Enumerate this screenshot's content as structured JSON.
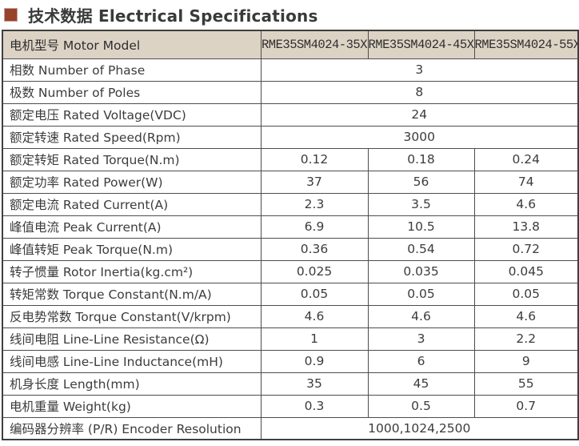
{
  "title": {
    "text": "技术数据 Electrical Specifications"
  },
  "colors": {
    "page_bg": "#ffffff",
    "header_bg": "#ddd3c5",
    "border": "#4d4d4d",
    "outer_border": "#3f3f3f",
    "bullet": "#96432c",
    "title_color": "#3a3a3a",
    "text": "#3c3c3c"
  },
  "table": {
    "header": {
      "label": "电机型号 Motor Model",
      "models": [
        "RME35SM4024-35X",
        "RME35SM4024-45X",
        "RME35SM4024-55X"
      ]
    },
    "rows": [
      {
        "label": "相数 Number of Phase",
        "values": [
          "3"
        ]
      },
      {
        "label": "极数 Number of Poles",
        "values": [
          "8"
        ]
      },
      {
        "label": "额定电压 Rated Voltage(VDC)",
        "values": [
          "24"
        ]
      },
      {
        "label": "额定转速 Rated Speed(Rpm)",
        "values": [
          "3000"
        ]
      },
      {
        "label": "额定转矩 Rated Torque(N.m)",
        "values": [
          "0.12",
          "0.18",
          "0.24"
        ]
      },
      {
        "label": "额定功率 Rated Power(W)",
        "values": [
          "37",
          "56",
          "74"
        ]
      },
      {
        "label": "额定电流 Rated Current(A)",
        "values": [
          "2.3",
          "3.5",
          "4.6"
        ]
      },
      {
        "label": "峰值电流 Peak Current(A)",
        "values": [
          "6.9",
          "10.5",
          "13.8"
        ]
      },
      {
        "label": "峰值转矩 Peak Torque(N.m)",
        "values": [
          "0.36",
          "0.54",
          "0.72"
        ]
      },
      {
        "label": "转子惯量 Rotor Inertia(kg.cm²)",
        "values": [
          "0.025",
          "0.035",
          "0.045"
        ]
      },
      {
        "label": "转矩常数 Torque Constant(N.m/A)",
        "values": [
          "0.05",
          "0.05",
          "0.05"
        ]
      },
      {
        "label": "反电势常数 Torque Constant(V/krpm)",
        "values": [
          "4.6",
          "4.6",
          "4.6"
        ]
      },
      {
        "label": "线间电阻 Line-Line Resistance(Ω)",
        "values": [
          "1",
          "3",
          "2.2"
        ]
      },
      {
        "label": "线间电感 Line-Line Inductance(mH)",
        "values": [
          "0.9",
          "6",
          "9"
        ]
      },
      {
        "label": "机身长度 Length(mm)",
        "values": [
          "35",
          "45",
          "55"
        ]
      },
      {
        "label": "电机重量 Weight(kg)",
        "values": [
          "0.3",
          "0.5",
          "0.7"
        ]
      },
      {
        "label": "编码器分辨率 (P/R) Encoder Resolution",
        "values": [
          "1000,1024,2500"
        ]
      }
    ]
  }
}
